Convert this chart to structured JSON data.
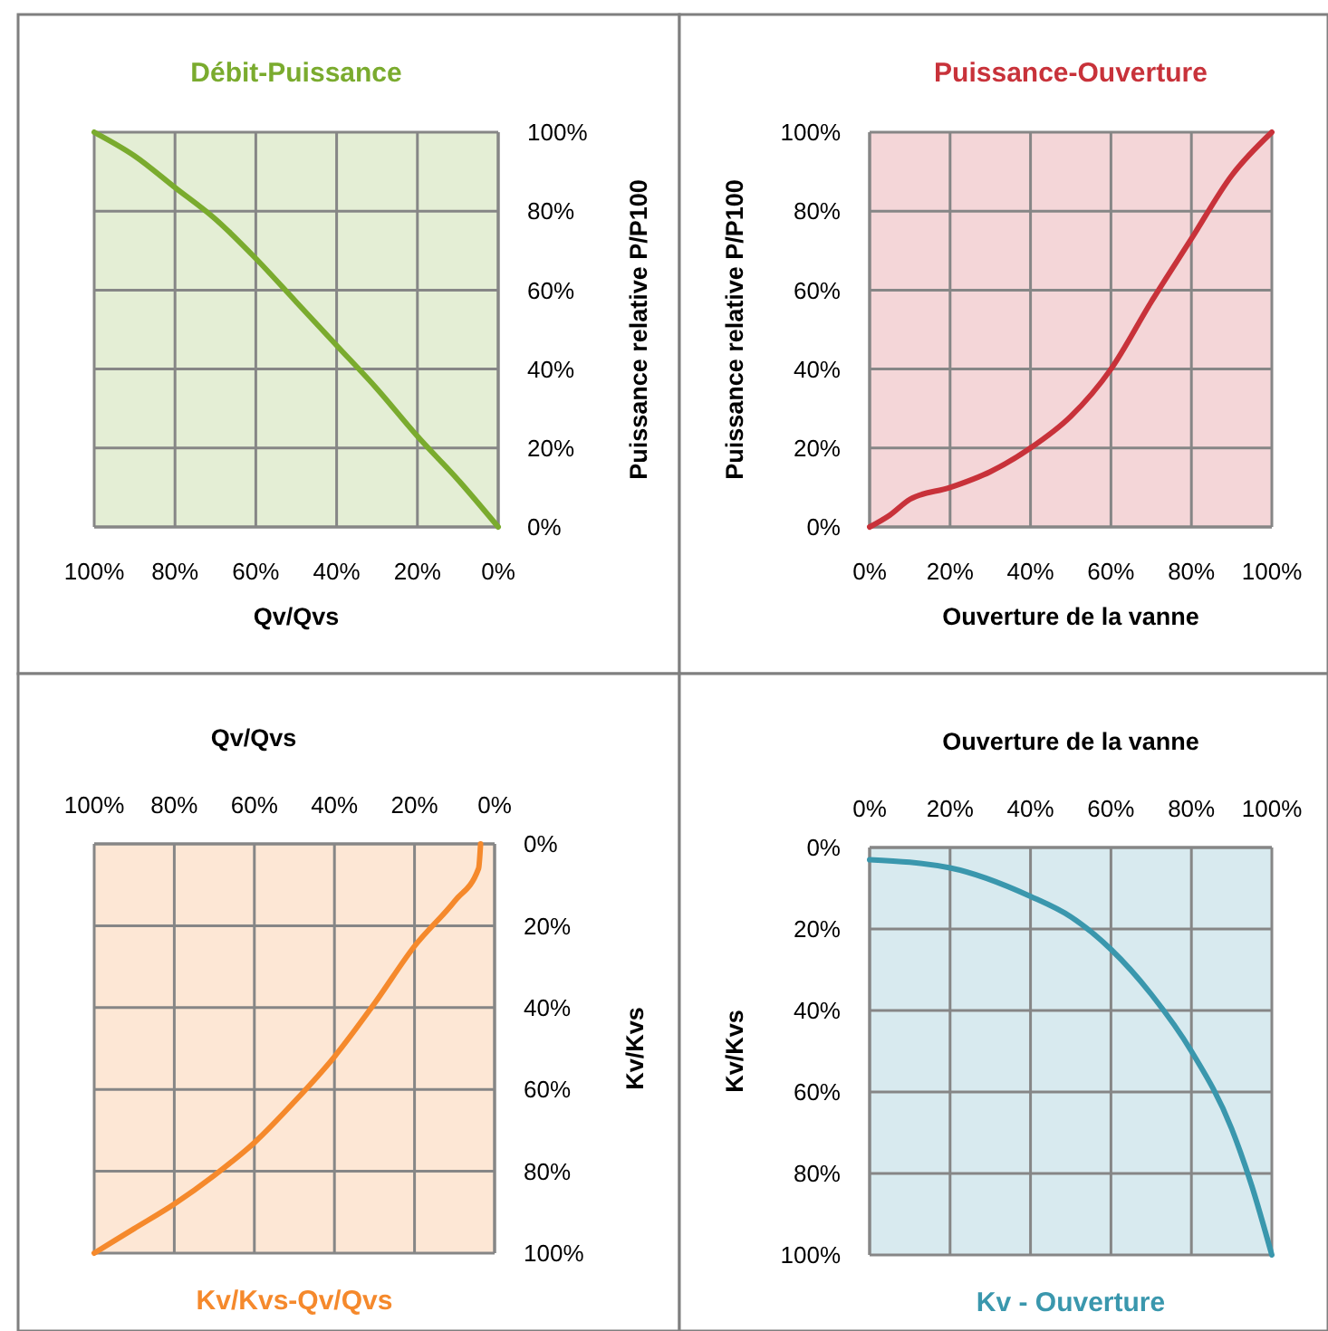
{
  "chart_data": [
    {
      "type": "line",
      "title": "Débit-Puissance",
      "xlabel": "Qv/Qvs",
      "y2label": "Puissance relative P/P100",
      "grid": true,
      "xlim": [
        100,
        0
      ],
      "xticks": [
        {
          "value": 100,
          "label": "100%"
        },
        {
          "value": 80,
          "label": "80%"
        },
        {
          "value": 60,
          "label": "60%"
        },
        {
          "value": 40,
          "label": "40%"
        },
        {
          "value": 20,
          "label": "20%"
        },
        {
          "value": 0,
          "label": "0%"
        }
      ],
      "y2lim": [
        0,
        100
      ],
      "y2ticks": [
        {
          "value": 0,
          "label": "0%"
        },
        {
          "value": 20,
          "label": "20%"
        },
        {
          "value": 40,
          "label": "40%"
        },
        {
          "value": 60,
          "label": "60%"
        },
        {
          "value": 80,
          "label": "80%"
        },
        {
          "value": 100,
          "label": "100%"
        }
      ],
      "series": [
        {
          "color": "#7aab2e",
          "axis": "y2",
          "x": [
            100,
            90,
            80,
            70,
            60,
            50,
            40,
            30,
            20,
            10,
            0
          ],
          "values": [
            100,
            94,
            86,
            78,
            68,
            57,
            46,
            35,
            23,
            12,
            0
          ]
        }
      ]
    },
    {
      "type": "line",
      "title": "Puissance-Ouverture",
      "xlabel": "Ouverture de la vanne",
      "ylabel": "Puissance relative P/P100",
      "grid": true,
      "xlim": [
        0,
        100
      ],
      "xticks": [
        {
          "value": 0,
          "label": "0%"
        },
        {
          "value": 20,
          "label": "20%"
        },
        {
          "value": 40,
          "label": "40%"
        },
        {
          "value": 60,
          "label": "60%"
        },
        {
          "value": 80,
          "label": "80%"
        },
        {
          "value": 100,
          "label": "100%"
        }
      ],
      "ylim": [
        0,
        100
      ],
      "yticks": [
        {
          "value": 0,
          "label": "0%"
        },
        {
          "value": 20,
          "label": "20%"
        },
        {
          "value": 40,
          "label": "40%"
        },
        {
          "value": 60,
          "label": "60%"
        },
        {
          "value": 80,
          "label": "80%"
        },
        {
          "value": 100,
          "label": "100%"
        }
      ],
      "series": [
        {
          "color": "#c8323a",
          "x": [
            0,
            5,
            10,
            20,
            30,
            40,
            50,
            60,
            70,
            80,
            90,
            100
          ],
          "values": [
            0,
            3,
            7,
            10,
            14,
            20,
            28,
            40,
            57,
            73,
            89,
            100
          ]
        }
      ]
    },
    {
      "type": "line",
      "title": "Kv/Kvs-Qv/Qvs",
      "xlabel": "Qv/Qvs",
      "y2label": "Kv/Kvs",
      "grid": true,
      "xlim": [
        100,
        0
      ],
      "xticks": [
        {
          "value": 100,
          "label": "100%"
        },
        {
          "value": 80,
          "label": "80%"
        },
        {
          "value": 60,
          "label": "60%"
        },
        {
          "value": 40,
          "label": "40%"
        },
        {
          "value": 20,
          "label": "20%"
        },
        {
          "value": 0,
          "label": "0%"
        }
      ],
      "y2lim": [
        100,
        0
      ],
      "y2ticks": [
        {
          "value": 0,
          "label": "0%"
        },
        {
          "value": 20,
          "label": "20%"
        },
        {
          "value": 40,
          "label": "40%"
        },
        {
          "value": 60,
          "label": "60%"
        },
        {
          "value": 80,
          "label": "80%"
        },
        {
          "value": 100,
          "label": "100%"
        }
      ],
      "series": [
        {
          "color": "#f5892c",
          "axis": "y2",
          "x": [
            100,
            90,
            80,
            70,
            60,
            50,
            40,
            30,
            20,
            10,
            4,
            3.5
          ],
          "values": [
            100,
            94,
            88,
            81,
            73,
            63,
            52,
            39,
            25,
            14,
            6,
            0
          ]
        }
      ]
    },
    {
      "type": "line",
      "title": "Kv - Ouverture",
      "xlabel": "Ouverture de la vanne",
      "ylabel": "Kv/Kvs",
      "grid": true,
      "xlim": [
        0,
        100
      ],
      "xticks": [
        {
          "value": 0,
          "label": "0%"
        },
        {
          "value": 20,
          "label": "20%"
        },
        {
          "value": 40,
          "label": "40%"
        },
        {
          "value": 60,
          "label": "60%"
        },
        {
          "value": 80,
          "label": "80%"
        },
        {
          "value": 100,
          "label": "100%"
        }
      ],
      "ylim": [
        100,
        0
      ],
      "yticks": [
        {
          "value": 0,
          "label": "0%"
        },
        {
          "value": 20,
          "label": "20%"
        },
        {
          "value": 40,
          "label": "40%"
        },
        {
          "value": 60,
          "label": "60%"
        },
        {
          "value": 80,
          "label": "80%"
        },
        {
          "value": 100,
          "label": "100%"
        }
      ],
      "series": [
        {
          "color": "#3a97ad",
          "x": [
            0,
            20,
            40,
            50,
            60,
            70,
            80,
            90,
            95,
            100
          ],
          "values": [
            3,
            5,
            12,
            17,
            25,
            36,
            50,
            69,
            83,
            100
          ]
        }
      ]
    }
  ]
}
